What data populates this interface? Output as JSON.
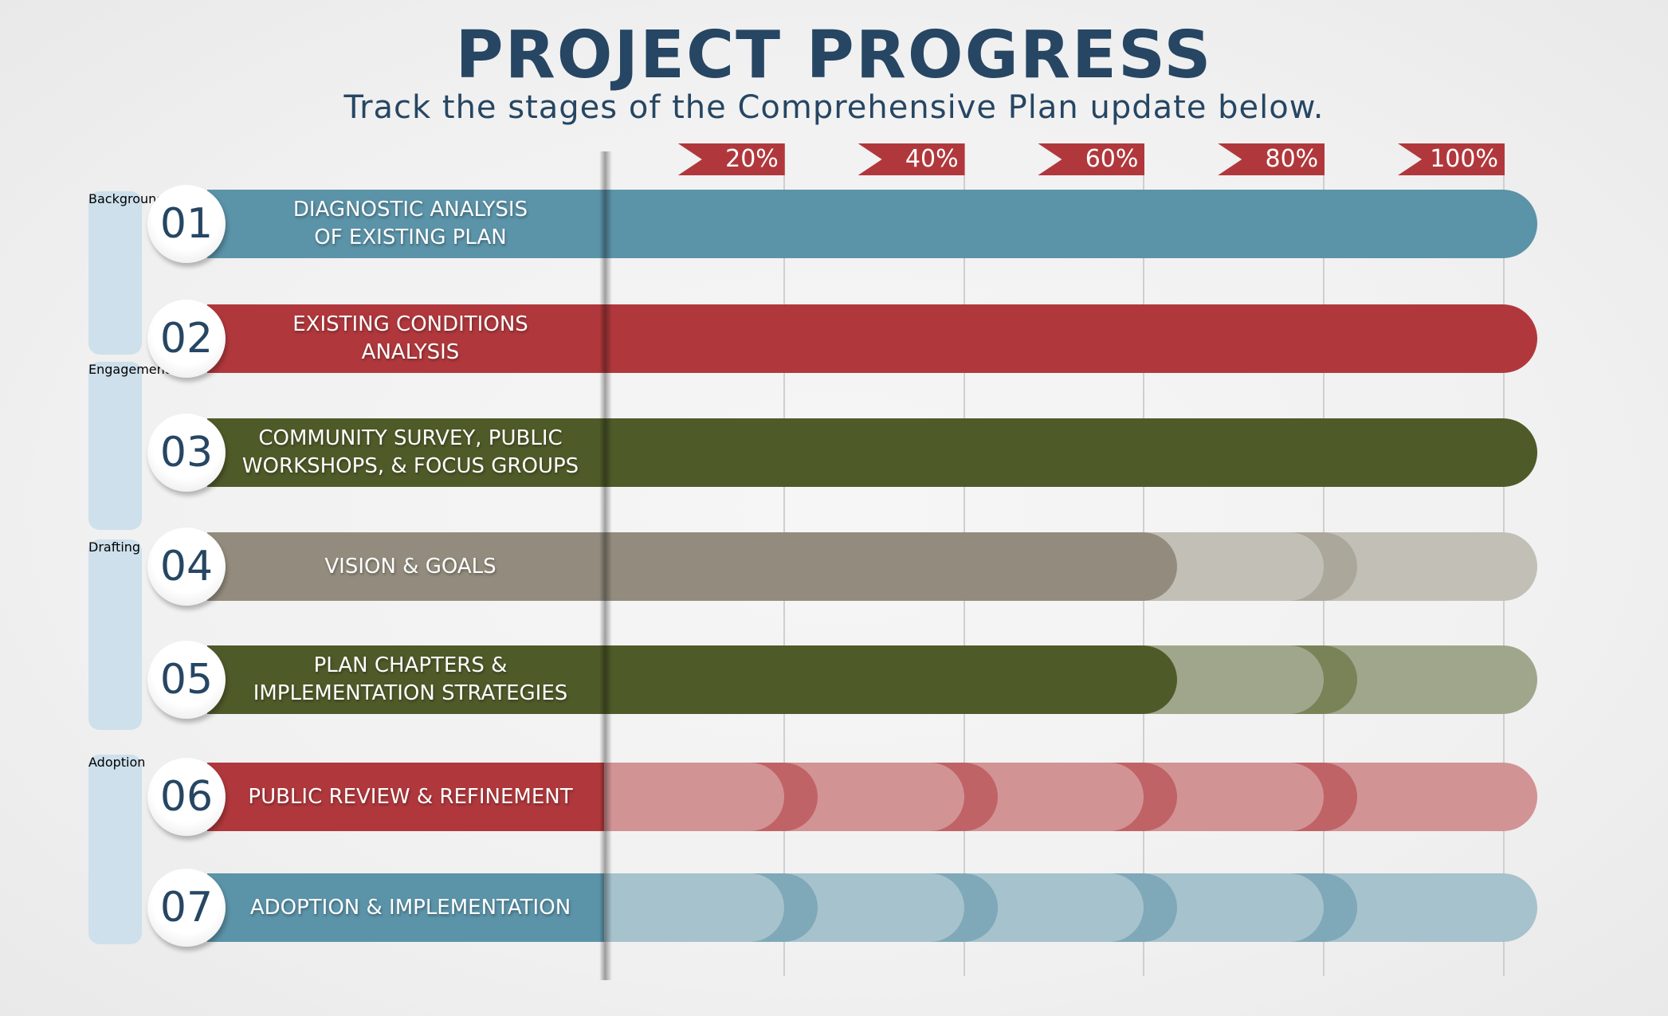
{
  "header": {
    "title": "PROJECT PROGRESS",
    "subtitle": "Track the stages of the Comprehensive Plan update below."
  },
  "chart_data": {
    "type": "bar",
    "orientation": "horizontal",
    "title": "PROJECT PROGRESS",
    "subtitle": "Track the stages of the Comprehensive Plan update below.",
    "xlim": [
      0,
      100
    ],
    "tick_labels": [
      "20%",
      "40%",
      "60%",
      "80%",
      "100%"
    ],
    "tick_values": [
      20,
      40,
      60,
      80,
      100
    ],
    "grid": true,
    "groups": [
      {
        "name": "Background",
        "stages": [
          "01",
          "02"
        ]
      },
      {
        "name": "Engagement",
        "stages": [
          "03"
        ]
      },
      {
        "name": "Drafting",
        "stages": [
          "04",
          "05"
        ]
      },
      {
        "name": "Adoption",
        "stages": [
          "06",
          "07"
        ]
      }
    ],
    "categories": [
      "DIAGNOSTIC ANALYSIS OF EXISTING PLAN",
      "EXISTING CONDITIONS ANALYSIS",
      "COMMUNITY SURVEY, PUBLIC WORKSHOPS, &  FOCUS GROUPS",
      "VISION & GOALS",
      "PLAN CHAPTERS & IMPLEMENTATION STRATEGIES",
      "PUBLIC REVIEW & REFINEMENT",
      "ADOPTION & IMPLEMENTATION"
    ],
    "stages": [
      {
        "num": "01",
        "line1": "DIAGNOSTIC ANALYSIS",
        "line2": "OF EXISTING PLAN",
        "progress": 100,
        "color": "#5b93a8",
        "light": "#a6c2cc",
        "cap": "#7fa8b8"
      },
      {
        "num": "02",
        "line1": "EXISTING CONDITIONS",
        "line2": "ANALYSIS",
        "progress": 100,
        "color": "#b0383c",
        "light": "#d29394",
        "cap": "#c06366"
      },
      {
        "num": "03",
        "line1": "COMMUNITY SURVEY, PUBLIC",
        "line2": "WORKSHOPS, &  FOCUS GROUPS",
        "progress": 100,
        "color": "#4f5a29",
        "light": "#a0a68b",
        "cap": "#7a8258"
      },
      {
        "num": "04",
        "line1": "VISION & GOALS",
        "line2": "",
        "progress": 60,
        "color": "#938c7e",
        "light": "#c2bfb6",
        "cap": "#aba79b"
      },
      {
        "num": "05",
        "line1": "PLAN CHAPTERS &",
        "line2": "IMPLEMENTATION STRATEGIES",
        "progress": 60,
        "color": "#4f5a29",
        "light": "#a0a68b",
        "cap": "#7a8258"
      },
      {
        "num": "06",
        "line1": "PUBLIC REVIEW & REFINEMENT",
        "line2": "",
        "progress": 0,
        "color": "#b0383c",
        "light": "#d29394",
        "cap": "#c06366"
      },
      {
        "num": "07",
        "line1": "ADOPTION & IMPLEMENTATION",
        "line2": "",
        "progress": 0,
        "color": "#5b93a8",
        "light": "#a6c2cc",
        "cap": "#7fa8b8"
      }
    ]
  }
}
